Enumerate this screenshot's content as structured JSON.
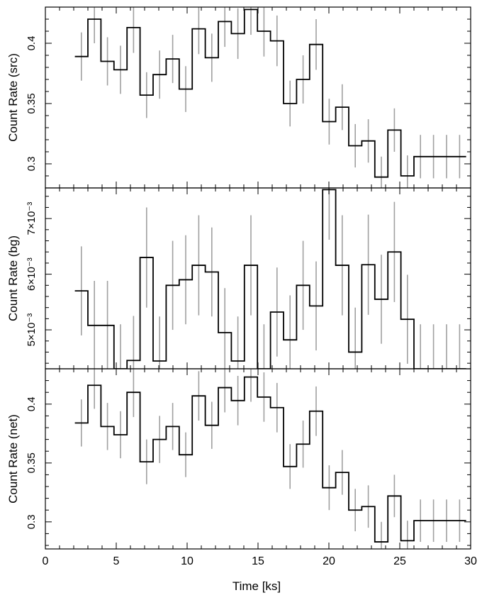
{
  "figure": {
    "xlabel": "Time [ks]",
    "xlim": [
      0,
      30
    ],
    "xticks": [
      "0",
      "5",
      "10",
      "15",
      "20",
      "25",
      "30"
    ],
    "step_color": "#000000",
    "error_color": "#a0a0a0"
  },
  "chart_data": [
    {
      "type": "line",
      "ylabel": "Count Rate (src)",
      "ylim": [
        0.28,
        0.43
      ],
      "yticks": [
        {
          "value": 0.3,
          "label": "0.3"
        },
        {
          "value": 0.35,
          "label": "0.35"
        },
        {
          "value": 0.4,
          "label": "0.4"
        }
      ],
      "bin_width": 0.92,
      "x": [
        2.54,
        3.46,
        4.38,
        5.3,
        6.22,
        7.14,
        8.06,
        8.98,
        9.9,
        10.82,
        11.74,
        12.66,
        13.58,
        14.5,
        15.42,
        16.34,
        17.26,
        18.18,
        19.1,
        20.02,
        20.94,
        21.86,
        22.78,
        23.7,
        24.62,
        25.54,
        26.46,
        27.38,
        28.3,
        29.22
      ],
      "y": [
        0.389,
        0.42,
        0.385,
        0.378,
        0.413,
        0.357,
        0.374,
        0.387,
        0.362,
        0.412,
        0.388,
        0.418,
        0.408,
        0.428,
        0.41,
        0.402,
        0.35,
        0.37,
        0.399,
        0.335,
        0.347,
        0.315,
        0.319,
        0.289,
        0.328,
        0.29,
        0.306,
        0.306,
        0.306,
        0.306
      ],
      "err": [
        0.02,
        0.02,
        0.02,
        0.02,
        0.021,
        0.019,
        0.02,
        0.02,
        0.019,
        0.021,
        0.02,
        0.021,
        0.021,
        0.021,
        0.021,
        0.021,
        0.019,
        0.02,
        0.021,
        0.019,
        0.019,
        0.018,
        0.018,
        0.017,
        0.018,
        0.017,
        0.018,
        0.018,
        0.018,
        0.018
      ]
    },
    {
      "type": "line",
      "ylabel": "Count Rate (bg)",
      "ylim": [
        0.0043,
        0.00755
      ],
      "yticks": [
        {
          "value": 0.005,
          "label": "5×10⁻³"
        },
        {
          "value": 0.006,
          "label": "6×10⁻³"
        },
        {
          "value": 0.007,
          "label": "7×10⁻³"
        }
      ],
      "bin_width": 0.92,
      "x": [
        2.54,
        3.46,
        4.38,
        5.3,
        6.22,
        7.14,
        8.06,
        8.98,
        9.9,
        10.82,
        11.74,
        12.66,
        13.58,
        14.5,
        15.42,
        16.34,
        17.26,
        18.18,
        19.1,
        20.02,
        20.94,
        21.86,
        22.78,
        23.7,
        24.62,
        25.54,
        26.46,
        27.38,
        28.3,
        29.22
      ],
      "y": [
        0.0057,
        0.00508,
        0.00508,
        0.0043,
        0.00445,
        0.0063,
        0.00444,
        0.0058,
        0.0059,
        0.00616,
        0.00604,
        0.00495,
        0.00444,
        0.00616,
        0.0043,
        0.00532,
        0.00482,
        0.0058,
        0.00543,
        0.00752,
        0.00616,
        0.0046,
        0.00617,
        0.00555,
        0.0064,
        0.00519,
        0.0043,
        0.0043,
        0.0043,
        0.0043
      ],
      "err": [
        0.0008,
        0.0008,
        0.0008,
        0.0008,
        0.0008,
        0.0009,
        0.0008,
        0.0008,
        0.0008,
        0.0009,
        0.0008,
        0.0008,
        0.0008,
        0.0009,
        0.0008,
        0.0008,
        0.0008,
        0.0008,
        0.0008,
        0.0009,
        0.0009,
        0.0008,
        0.0009,
        0.0008,
        0.0009,
        0.0008,
        0.0008,
        0.0008,
        0.0008,
        0.0008
      ]
    },
    {
      "type": "line",
      "ylabel": "Count Rate (net)",
      "ylim": [
        0.277,
        0.43
      ],
      "yticks": [
        {
          "value": 0.3,
          "label": "0.3"
        },
        {
          "value": 0.35,
          "label": "0.35"
        },
        {
          "value": 0.4,
          "label": "0.4"
        }
      ],
      "bin_width": 0.92,
      "x": [
        2.54,
        3.46,
        4.38,
        5.3,
        6.22,
        7.14,
        8.06,
        8.98,
        9.9,
        10.82,
        11.74,
        12.66,
        13.58,
        14.5,
        15.42,
        16.34,
        17.26,
        18.18,
        19.1,
        20.02,
        20.94,
        21.86,
        22.78,
        23.7,
        24.62,
        25.54,
        26.46,
        27.38,
        28.3,
        29.22
      ],
      "y": [
        0.384,
        0.416,
        0.381,
        0.374,
        0.41,
        0.351,
        0.37,
        0.381,
        0.357,
        0.407,
        0.382,
        0.414,
        0.403,
        0.423,
        0.406,
        0.397,
        0.347,
        0.366,
        0.394,
        0.329,
        0.342,
        0.31,
        0.313,
        0.283,
        0.322,
        0.284,
        0.301,
        0.301,
        0.301,
        0.301
      ],
      "err": [
        0.02,
        0.02,
        0.02,
        0.02,
        0.021,
        0.019,
        0.02,
        0.02,
        0.019,
        0.021,
        0.02,
        0.021,
        0.021,
        0.021,
        0.021,
        0.021,
        0.019,
        0.02,
        0.021,
        0.019,
        0.019,
        0.018,
        0.018,
        0.017,
        0.018,
        0.017,
        0.018,
        0.018,
        0.018,
        0.018
      ]
    }
  ]
}
